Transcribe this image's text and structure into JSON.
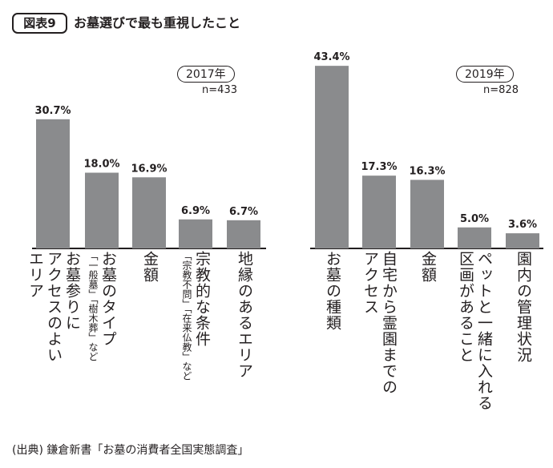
{
  "figure": {
    "badge": "図表9",
    "title": "お墓選びで最も重視したこと",
    "source": "(出典) 鎌倉新書「お墓の消費者全国実態調査」"
  },
  "chart_data": [
    {
      "type": "bar",
      "year_label": "2017年",
      "n_label": "n=433",
      "ylim": [
        0,
        45
      ],
      "values": [
        30.7,
        18.0,
        16.9,
        6.9,
        6.7
      ],
      "value_labels": [
        "30.7%",
        "18.0%",
        "16.9%",
        "6.9%",
        "6.7%"
      ],
      "categories": [
        {
          "main": [
            "お墓参りに",
            "アクセスのよい",
            "エリア"
          ],
          "sub": []
        },
        {
          "main": [
            "お墓のタイプ"
          ],
          "sub": [
            "「一般墓」「樹木葬」など"
          ]
        },
        {
          "main": [
            "金額"
          ],
          "sub": []
        },
        {
          "main": [
            "宗教的な条件"
          ],
          "sub": [
            "「宗教不問」「在来仏教」など"
          ]
        },
        {
          "main": [
            "地縁のあるエリア"
          ],
          "sub": []
        }
      ]
    },
    {
      "type": "bar",
      "year_label": "2019年",
      "n_label": "n=828",
      "ylim": [
        0,
        45
      ],
      "values": [
        43.4,
        17.3,
        16.3,
        5.0,
        3.6
      ],
      "value_labels": [
        "43.4%",
        "17.3%",
        "16.3%",
        "5.0%",
        "3.6%"
      ],
      "categories": [
        {
          "main": [
            "お墓の種類"
          ],
          "sub": []
        },
        {
          "main": [
            "自宅から霊園までの",
            "アクセス"
          ],
          "sub": []
        },
        {
          "main": [
            "金額"
          ],
          "sub": []
        },
        {
          "main": [
            "ペットと一緒に入れる",
            "区画があること"
          ],
          "sub": []
        },
        {
          "main": [
            "園内の管理状況"
          ],
          "sub": []
        }
      ]
    }
  ],
  "colors": {
    "bar": "#8a8b8d",
    "text": "#231f20",
    "axis": "#231f20"
  }
}
